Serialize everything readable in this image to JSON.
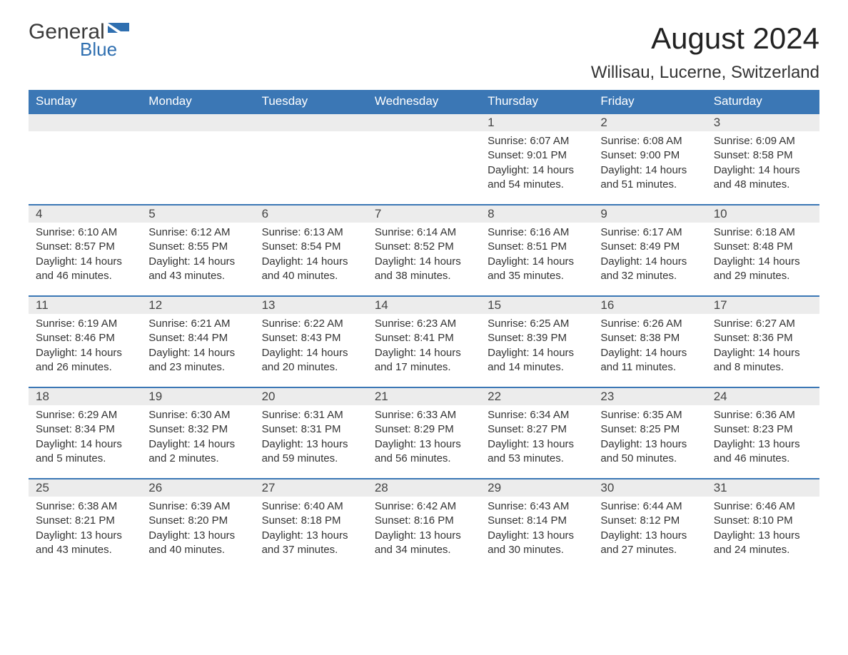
{
  "logo": {
    "text_general": "General",
    "text_blue": "Blue",
    "shape_color": "#2f6fb0"
  },
  "header": {
    "month_title": "August 2024",
    "location": "Willisau, Lucerne, Switzerland"
  },
  "colors": {
    "header_bg": "#3b77b5",
    "header_text": "#ffffff",
    "daynum_bg": "#ececec",
    "row_divider": "#3b77b5",
    "body_text": "#333333",
    "background": "#ffffff"
  },
  "weekdays": [
    "Sunday",
    "Monday",
    "Tuesday",
    "Wednesday",
    "Thursday",
    "Friday",
    "Saturday"
  ],
  "weeks": [
    [
      null,
      null,
      null,
      null,
      {
        "day": "1",
        "sunrise": "6:07 AM",
        "sunset": "9:01 PM",
        "daylight": "14 hours and 54 minutes."
      },
      {
        "day": "2",
        "sunrise": "6:08 AM",
        "sunset": "9:00 PM",
        "daylight": "14 hours and 51 minutes."
      },
      {
        "day": "3",
        "sunrise": "6:09 AM",
        "sunset": "8:58 PM",
        "daylight": "14 hours and 48 minutes."
      }
    ],
    [
      {
        "day": "4",
        "sunrise": "6:10 AM",
        "sunset": "8:57 PM",
        "daylight": "14 hours and 46 minutes."
      },
      {
        "day": "5",
        "sunrise": "6:12 AM",
        "sunset": "8:55 PM",
        "daylight": "14 hours and 43 minutes."
      },
      {
        "day": "6",
        "sunrise": "6:13 AM",
        "sunset": "8:54 PM",
        "daylight": "14 hours and 40 minutes."
      },
      {
        "day": "7",
        "sunrise": "6:14 AM",
        "sunset": "8:52 PM",
        "daylight": "14 hours and 38 minutes."
      },
      {
        "day": "8",
        "sunrise": "6:16 AM",
        "sunset": "8:51 PM",
        "daylight": "14 hours and 35 minutes."
      },
      {
        "day": "9",
        "sunrise": "6:17 AM",
        "sunset": "8:49 PM",
        "daylight": "14 hours and 32 minutes."
      },
      {
        "day": "10",
        "sunrise": "6:18 AM",
        "sunset": "8:48 PM",
        "daylight": "14 hours and 29 minutes."
      }
    ],
    [
      {
        "day": "11",
        "sunrise": "6:19 AM",
        "sunset": "8:46 PM",
        "daylight": "14 hours and 26 minutes."
      },
      {
        "day": "12",
        "sunrise": "6:21 AM",
        "sunset": "8:44 PM",
        "daylight": "14 hours and 23 minutes."
      },
      {
        "day": "13",
        "sunrise": "6:22 AM",
        "sunset": "8:43 PM",
        "daylight": "14 hours and 20 minutes."
      },
      {
        "day": "14",
        "sunrise": "6:23 AM",
        "sunset": "8:41 PM",
        "daylight": "14 hours and 17 minutes."
      },
      {
        "day": "15",
        "sunrise": "6:25 AM",
        "sunset": "8:39 PM",
        "daylight": "14 hours and 14 minutes."
      },
      {
        "day": "16",
        "sunrise": "6:26 AM",
        "sunset": "8:38 PM",
        "daylight": "14 hours and 11 minutes."
      },
      {
        "day": "17",
        "sunrise": "6:27 AM",
        "sunset": "8:36 PM",
        "daylight": "14 hours and 8 minutes."
      }
    ],
    [
      {
        "day": "18",
        "sunrise": "6:29 AM",
        "sunset": "8:34 PM",
        "daylight": "14 hours and 5 minutes."
      },
      {
        "day": "19",
        "sunrise": "6:30 AM",
        "sunset": "8:32 PM",
        "daylight": "14 hours and 2 minutes."
      },
      {
        "day": "20",
        "sunrise": "6:31 AM",
        "sunset": "8:31 PM",
        "daylight": "13 hours and 59 minutes."
      },
      {
        "day": "21",
        "sunrise": "6:33 AM",
        "sunset": "8:29 PM",
        "daylight": "13 hours and 56 minutes."
      },
      {
        "day": "22",
        "sunrise": "6:34 AM",
        "sunset": "8:27 PM",
        "daylight": "13 hours and 53 minutes."
      },
      {
        "day": "23",
        "sunrise": "6:35 AM",
        "sunset": "8:25 PM",
        "daylight": "13 hours and 50 minutes."
      },
      {
        "day": "24",
        "sunrise": "6:36 AM",
        "sunset": "8:23 PM",
        "daylight": "13 hours and 46 minutes."
      }
    ],
    [
      {
        "day": "25",
        "sunrise": "6:38 AM",
        "sunset": "8:21 PM",
        "daylight": "13 hours and 43 minutes."
      },
      {
        "day": "26",
        "sunrise": "6:39 AM",
        "sunset": "8:20 PM",
        "daylight": "13 hours and 40 minutes."
      },
      {
        "day": "27",
        "sunrise": "6:40 AM",
        "sunset": "8:18 PM",
        "daylight": "13 hours and 37 minutes."
      },
      {
        "day": "28",
        "sunrise": "6:42 AM",
        "sunset": "8:16 PM",
        "daylight": "13 hours and 34 minutes."
      },
      {
        "day": "29",
        "sunrise": "6:43 AM",
        "sunset": "8:14 PM",
        "daylight": "13 hours and 30 minutes."
      },
      {
        "day": "30",
        "sunrise": "6:44 AM",
        "sunset": "8:12 PM",
        "daylight": "13 hours and 27 minutes."
      },
      {
        "day": "31",
        "sunrise": "6:46 AM",
        "sunset": "8:10 PM",
        "daylight": "13 hours and 24 minutes."
      }
    ]
  ],
  "labels": {
    "sunrise": "Sunrise:",
    "sunset": "Sunset:",
    "daylight": "Daylight:"
  }
}
